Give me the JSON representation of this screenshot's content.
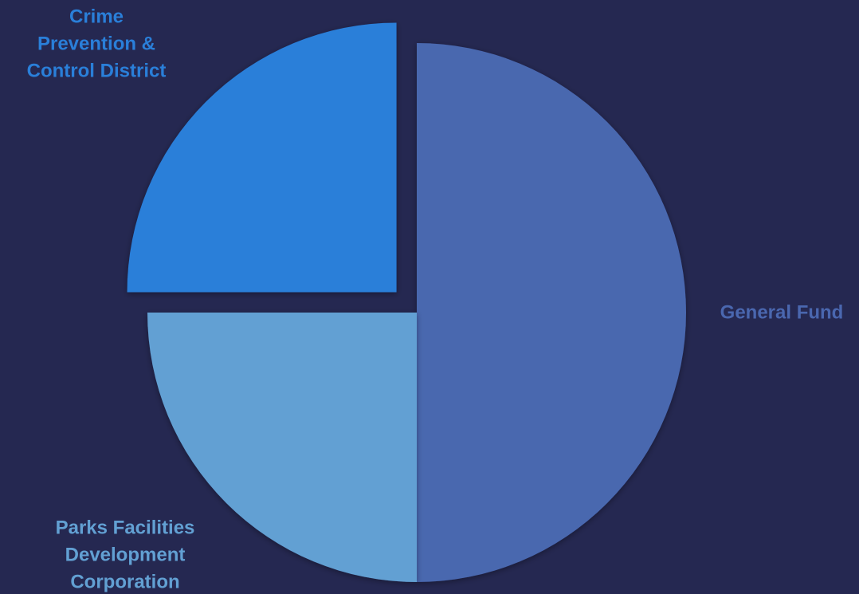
{
  "page": {
    "background": "#252851"
  },
  "chart_data": {
    "type": "pie",
    "title": "",
    "slices": [
      {
        "label_lines": [
          "General Fund"
        ],
        "value": 50,
        "color": "#4A67AF",
        "exploded": false
      },
      {
        "label_lines": [
          "Parks Facilities",
          "Development",
          "Corporation"
        ],
        "value": 25,
        "color": "#62A0D3",
        "exploded": false
      },
      {
        "label_lines": [
          "Crime",
          "Prevention &",
          "Control District"
        ],
        "value": 25,
        "color": "#2A7FD9",
        "exploded": true
      }
    ],
    "start_angle_deg": 0,
    "direction": "clockwise",
    "legend": "none"
  }
}
